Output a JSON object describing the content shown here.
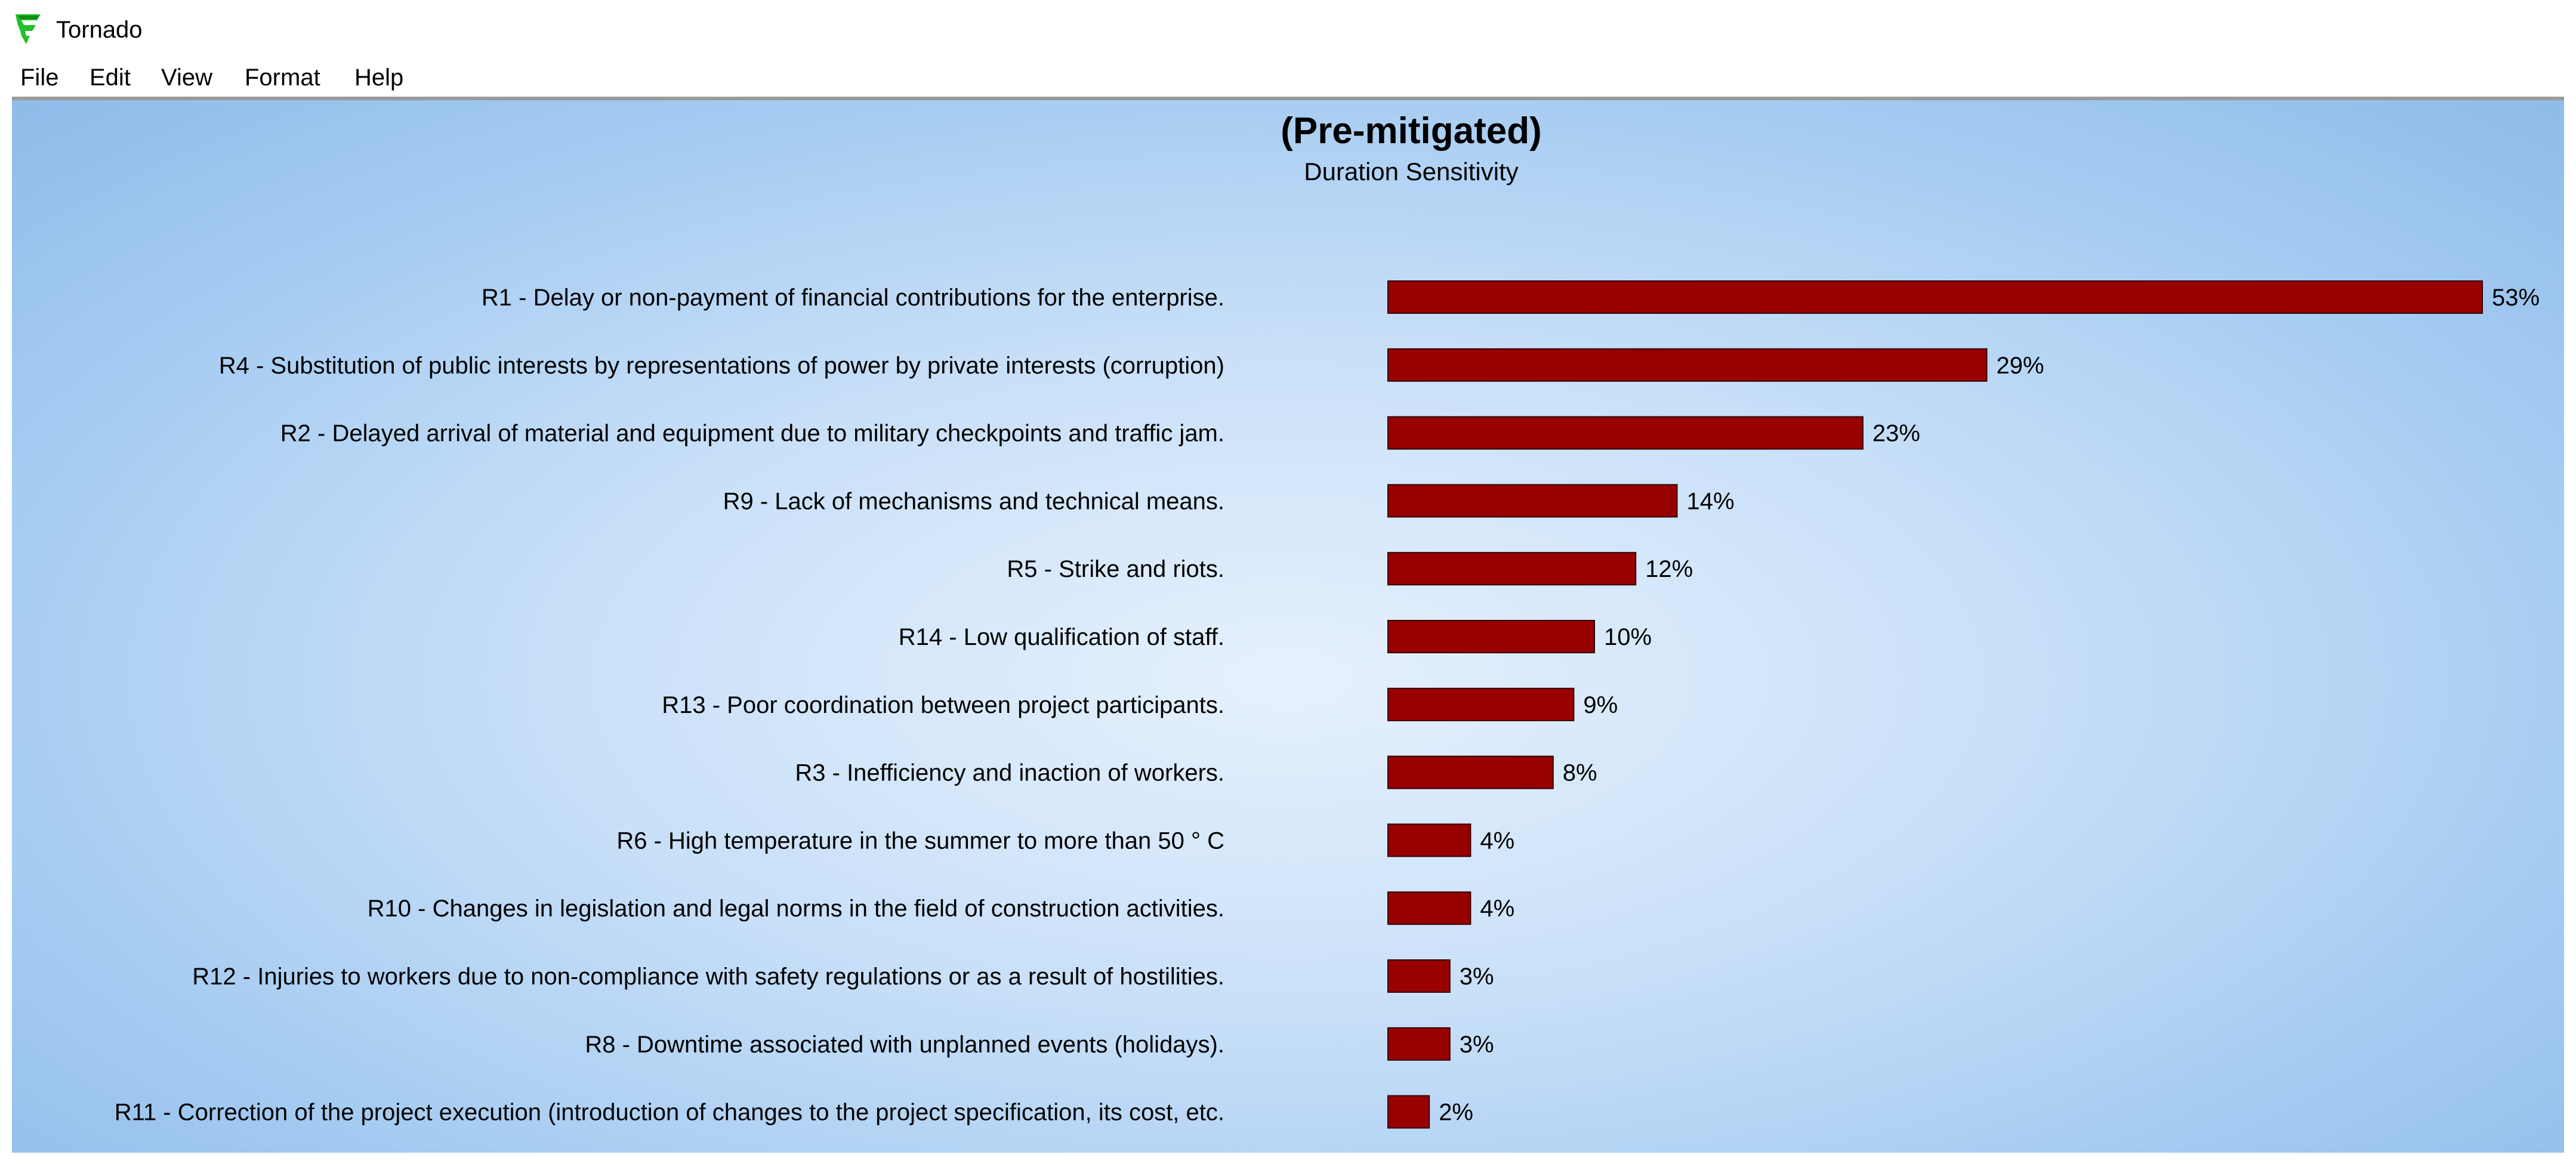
{
  "window": {
    "title": "Tornado",
    "icon": "tornado-app-icon",
    "accent_color": "#22c02a"
  },
  "menu": {
    "items": [
      "File",
      "Edit",
      "View",
      "Format",
      "Help"
    ]
  },
  "chart_data": {
    "type": "bar",
    "orientation": "horizontal",
    "title": "(Pre-mitigated)",
    "subtitle": "Duration Sensitivity",
    "bar_color": "#990000",
    "value_unit": "%",
    "xlim": [
      0,
      53
    ],
    "grid": false,
    "categories": [
      "R1 - Delay or non-payment of financial contributions for the enterprise.",
      "R4 - Substitution of public interests by representations of power by private interests (corruption)",
      "R2 - Delayed arrival of material and equipment due to military checkpoints and traffic jam.",
      "R9 - Lack of mechanisms and technical means.",
      "R5 - Strike and riots.",
      "R14 - Low qualification of staff.",
      "R13  - Poor coordination between project participants.",
      "R3 - Inefficiency and inaction of workers.",
      "R6 - High temperature in the summer to more than 50 ° C",
      "R10 - Changes in legislation and legal norms in the field of construction activities.",
      "R12 - Injuries to workers due to non-compliance with safety regulations or as a result of hostilities.",
      "R8 - Downtime associated with unplanned events (holidays).",
      "R11 - Correction of the project execution (introduction of changes to the project specification, its cost, etc."
    ],
    "values": [
      53,
      29,
      23,
      14,
      12,
      10,
      9,
      8,
      4,
      4,
      3,
      3,
      2
    ],
    "value_labels": [
      "53%",
      "29%",
      "23%",
      "14%",
      "12%",
      "10%",
      "9%",
      "8%",
      "4%",
      "4%",
      "3%",
      "3%",
      "2%"
    ]
  }
}
